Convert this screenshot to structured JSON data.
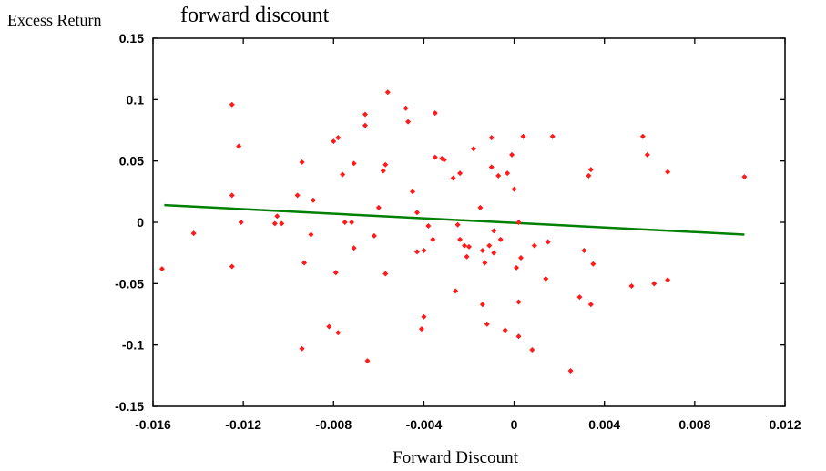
{
  "header": {
    "ylabel_title": "Excess Return",
    "plot_title": "forward discount"
  },
  "colors": {
    "points": "#ff1a1a",
    "fit_line": "#008000",
    "axis": "#000000"
  },
  "chart_data": {
    "type": "scatter",
    "title": "forward discount",
    "xlabel": "Forward Discount",
    "ylabel": "Excess Return",
    "xlim": [
      -0.016,
      0.012
    ],
    "ylim": [
      -0.15,
      0.15
    ],
    "xticks": [
      -0.016,
      -0.012,
      -0.008,
      -0.004,
      0,
      0.004,
      0.008,
      0.012
    ],
    "xtick_labels": [
      "-0.016",
      "-0.012",
      "-0.008",
      "-0.004",
      "0",
      "0.004",
      "0.008",
      "0.012"
    ],
    "yticks": [
      0.15,
      0.1,
      0.05,
      0,
      -0.05,
      -0.1,
      -0.15
    ],
    "ytick_labels": [
      "0.15",
      "0.1",
      "0.05",
      "0",
      "-0.05",
      "-0.1",
      "-0.15"
    ],
    "grid": false,
    "series": [
      {
        "kind": "points",
        "x": [
          -0.0156,
          -0.0142,
          -0.0125,
          -0.0125,
          -0.0125,
          -0.0122,
          -0.0121,
          -0.0106,
          -0.0105,
          -0.0103,
          -0.0096,
          -0.0094,
          -0.0094,
          -0.0093,
          -0.009,
          -0.0089,
          -0.0082,
          -0.008,
          -0.0079,
          -0.0078,
          -0.0078,
          -0.0076,
          -0.0075,
          -0.0072,
          -0.0071,
          -0.0071,
          -0.0066,
          -0.0066,
          -0.0065,
          -0.0062,
          -0.006,
          -0.0058,
          -0.0057,
          -0.0057,
          -0.0056,
          -0.0048,
          -0.0047,
          -0.0045,
          -0.0043,
          -0.0043,
          -0.0041,
          -0.004,
          -0.004,
          -0.0038,
          -0.0036,
          -0.0035,
          -0.0035,
          -0.0032,
          -0.0031,
          -0.0027,
          -0.0026,
          -0.0025,
          -0.0024,
          -0.0024,
          -0.0022,
          -0.0021,
          -0.002,
          -0.0018,
          -0.0015,
          -0.0014,
          -0.0014,
          -0.0013,
          -0.0012,
          -0.0011,
          -0.001,
          -0.001,
          -0.0009,
          -0.0009,
          -0.0007,
          -0.0006,
          -0.0004,
          -0.0003,
          -0.0001,
          0.0,
          0.0001,
          0.0002,
          0.0002,
          0.0002,
          0.0003,
          0.0004,
          0.0008,
          0.0009,
          0.0014,
          0.0015,
          0.0017,
          0.0025,
          0.0029,
          0.0031,
          0.0033,
          0.0034,
          0.0034,
          0.0035,
          0.0052,
          0.0057,
          0.0059,
          0.0062,
          0.0068,
          0.0068,
          0.0102
        ],
        "y": [
          -0.038,
          -0.009,
          0.096,
          0.022,
          -0.036,
          0.062,
          0.0,
          -0.001,
          0.005,
          -0.001,
          0.022,
          0.049,
          -0.103,
          -0.033,
          -0.01,
          0.018,
          -0.085,
          0.066,
          -0.041,
          0.069,
          -0.09,
          0.039,
          0.0,
          0.0,
          0.048,
          -0.021,
          0.079,
          0.088,
          -0.113,
          -0.011,
          0.012,
          0.042,
          -0.042,
          0.047,
          0.106,
          0.093,
          0.082,
          0.025,
          0.008,
          -0.024,
          -0.087,
          -0.077,
          -0.023,
          -0.003,
          -0.014,
          0.053,
          0.089,
          0.052,
          0.051,
          0.036,
          -0.056,
          -0.002,
          0.04,
          -0.014,
          -0.019,
          -0.028,
          -0.02,
          0.06,
          0.012,
          -0.067,
          -0.023,
          -0.033,
          -0.083,
          -0.019,
          0.069,
          0.045,
          -0.025,
          -0.007,
          0.038,
          -0.014,
          -0.088,
          0.04,
          0.055,
          0.027,
          -0.037,
          -0.065,
          -0.093,
          0.0,
          -0.029,
          0.07,
          -0.104,
          -0.019,
          -0.046,
          -0.016,
          0.07,
          -0.121,
          -0.061,
          -0.023,
          0.038,
          -0.067,
          0.043,
          -0.034,
          -0.052,
          0.07,
          0.055,
          -0.05,
          0.041,
          -0.047,
          0.037
        ]
      },
      {
        "kind": "fit-line",
        "x": [
          -0.0155,
          0.0102
        ],
        "y": [
          0.014,
          -0.01
        ]
      }
    ]
  }
}
